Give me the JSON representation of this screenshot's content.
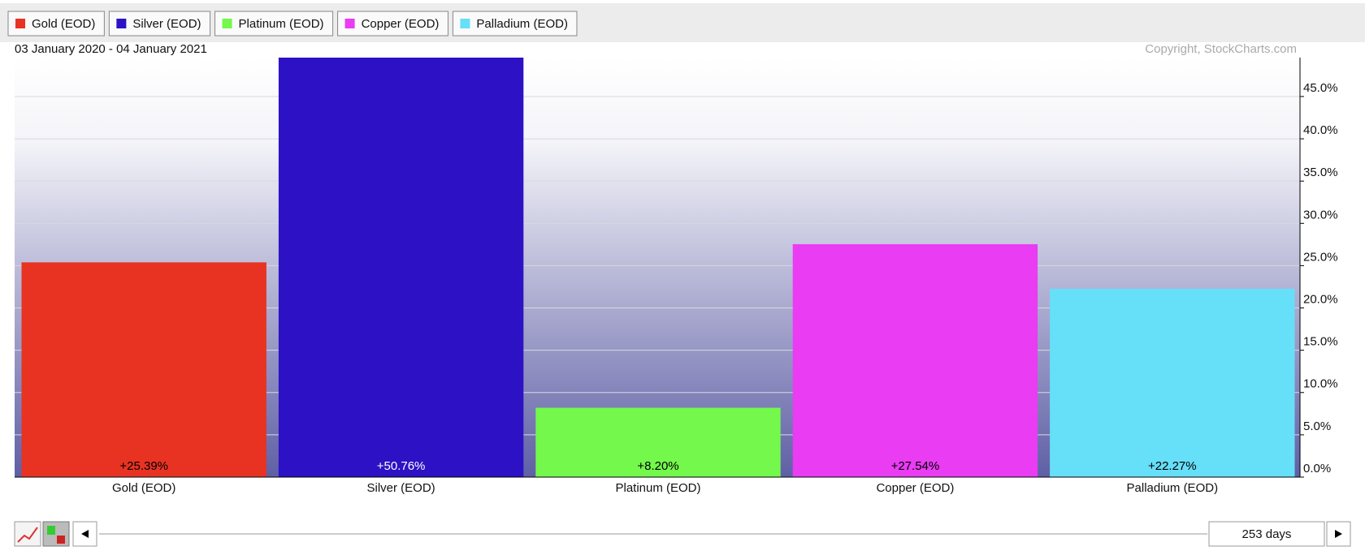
{
  "chart_data": {
    "type": "bar",
    "date_range": "03 January 2020 - 04 January 2021",
    "copyright": "Copyright, StockCharts.com",
    "categories": [
      "Gold (EOD)",
      "Silver (EOD)",
      "Platinum (EOD)",
      "Copper (EOD)",
      "Palladium (EOD)"
    ],
    "values": [
      25.39,
      50.76,
      8.2,
      27.54,
      22.27
    ],
    "value_labels": [
      "+25.39%",
      "+50.76%",
      "+8.20%",
      "+27.54%",
      "+22.27%"
    ],
    "colors": [
      "#e83323",
      "#2c12c4",
      "#73f84b",
      "#e93cf3",
      "#66dff8"
    ],
    "ylim": [
      0,
      49.6
    ],
    "yticks": [
      {
        "value": 0,
        "label": "0.0%"
      },
      {
        "value": 5,
        "label": "5.0%"
      },
      {
        "value": 10,
        "label": "10.0%"
      },
      {
        "value": 15,
        "label": "15.0%"
      },
      {
        "value": 20,
        "label": "20.0%"
      },
      {
        "value": 25,
        "label": "25.0%"
      },
      {
        "value": 30,
        "label": "30.0%"
      },
      {
        "value": 35,
        "label": "35.0%"
      },
      {
        "value": 40,
        "label": "40.0%"
      },
      {
        "value": 45,
        "label": "45.0%"
      }
    ],
    "grid": true
  },
  "controls": {
    "range": "253 days"
  }
}
